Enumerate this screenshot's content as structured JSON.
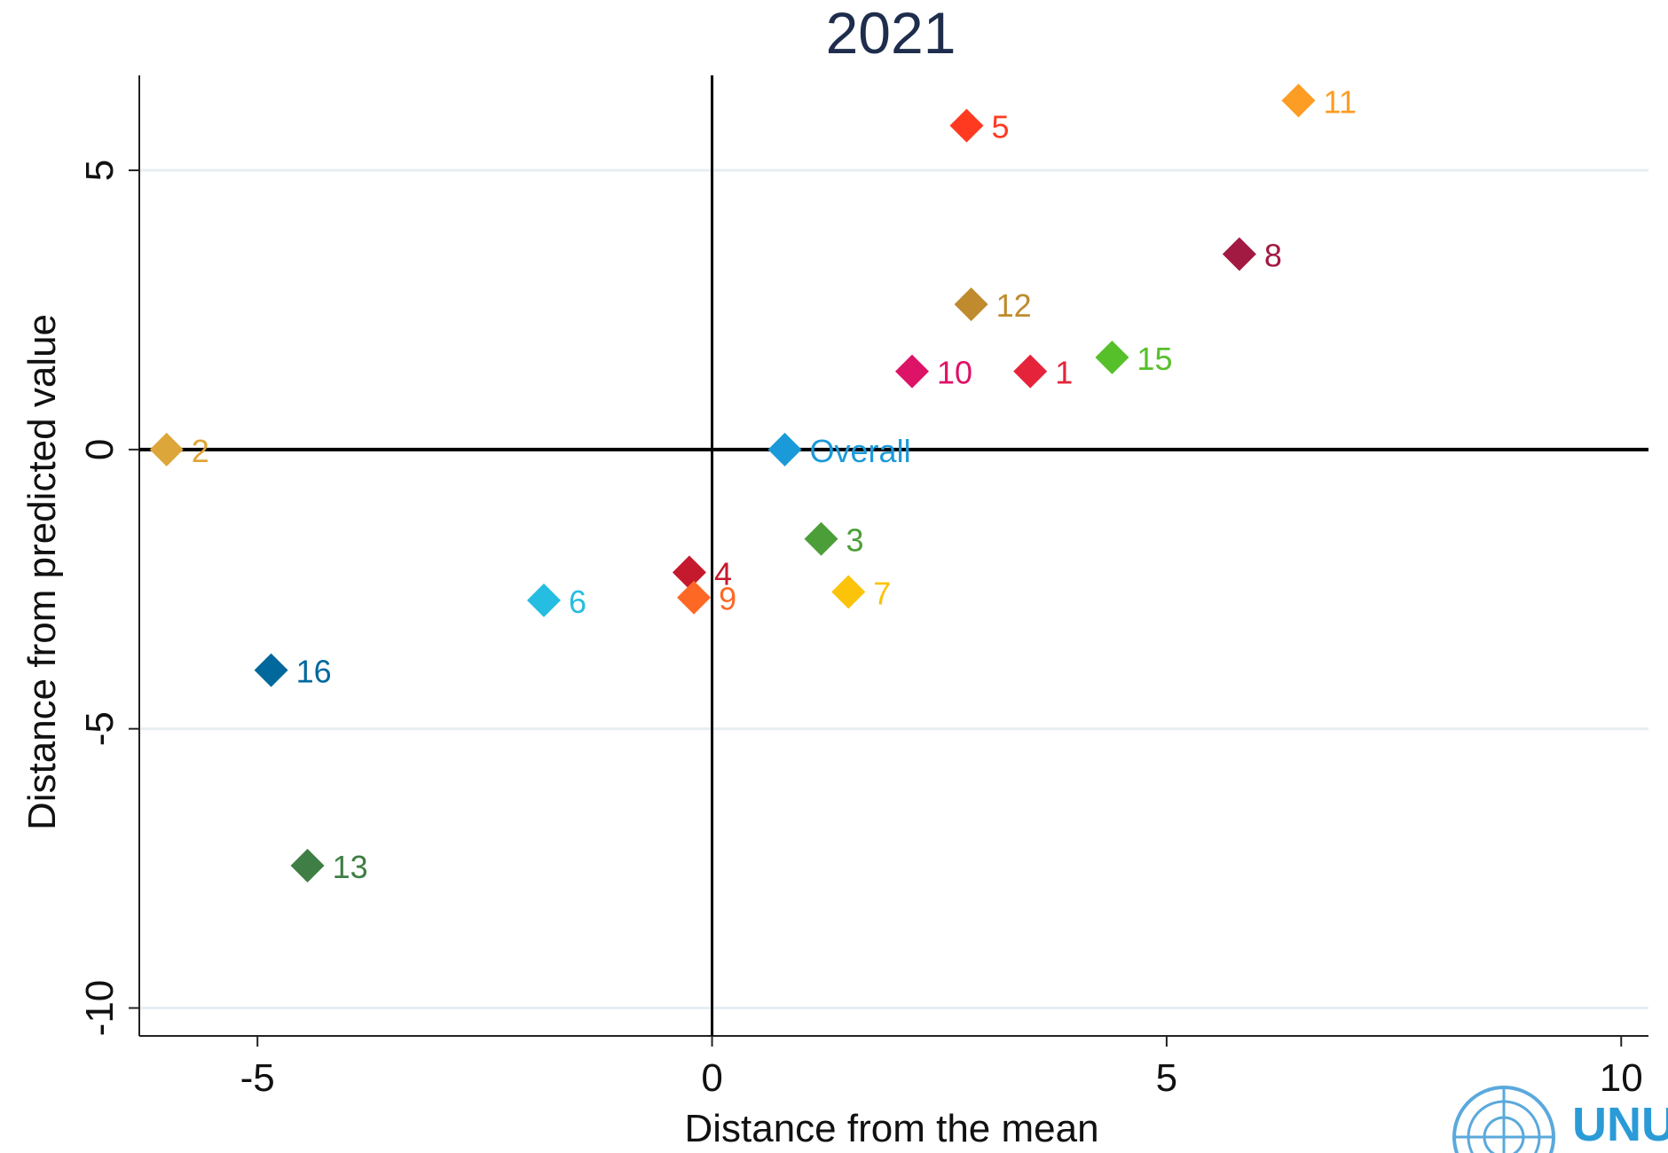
{
  "chart_data": {
    "type": "scatter",
    "title": "2021",
    "xlabel": "Distance from the mean",
    "ylabel": "Distance from predicted value",
    "xlim": [
      -6.3,
      10.3
    ],
    "ylim": [
      -10.5,
      6.7
    ],
    "xticks": [
      -5,
      0,
      5,
      10
    ],
    "xtick_labels": [
      "-5",
      "0",
      "5",
      "10"
    ],
    "yticks": [
      -10,
      -5,
      0,
      5
    ],
    "ytick_labels": [
      "-10",
      "-5",
      "0",
      "5"
    ],
    "grid": "horizontal",
    "reference_lines": {
      "x": 0,
      "y": 0
    },
    "marker": "diamond",
    "points": [
      {
        "label": "1",
        "x": 3.5,
        "y": 1.4,
        "color": "#e5243b"
      },
      {
        "label": "2",
        "x": -6.0,
        "y": 0.0,
        "color": "#dda63a"
      },
      {
        "label": "3",
        "x": 1.2,
        "y": -1.6,
        "color": "#4c9f38"
      },
      {
        "label": "4",
        "x": -0.25,
        "y": -2.2,
        "color": "#c5192d"
      },
      {
        "label": "5",
        "x": 2.8,
        "y": 5.8,
        "color": "#ff3a21"
      },
      {
        "label": "6",
        "x": -1.85,
        "y": -2.7,
        "color": "#26bde2"
      },
      {
        "label": "7",
        "x": 1.5,
        "y": -2.55,
        "color": "#fcc30b"
      },
      {
        "label": "8",
        "x": 5.8,
        "y": 3.5,
        "color": "#a21942"
      },
      {
        "label": "9",
        "x": -0.2,
        "y": -2.65,
        "color": "#fd6925"
      },
      {
        "label": "10",
        "x": 2.2,
        "y": 1.4,
        "color": "#dd1367"
      },
      {
        "label": "11",
        "x": 6.45,
        "y": 6.25,
        "color": "#fd9d24"
      },
      {
        "label": "12",
        "x": 2.85,
        "y": 2.6,
        "color": "#bf8b2e"
      },
      {
        "label": "13",
        "x": -4.45,
        "y": -7.45,
        "color": "#3f7e44"
      },
      {
        "label": "15",
        "x": 4.4,
        "y": 1.65,
        "color": "#56c02b"
      },
      {
        "label": "16",
        "x": -4.85,
        "y": -3.95,
        "color": "#00689d"
      },
      {
        "label": "Overall",
        "x": 0.8,
        "y": 0.0,
        "color": "#1b9ad9"
      }
    ]
  },
  "logo": {
    "text": "UNU"
  }
}
